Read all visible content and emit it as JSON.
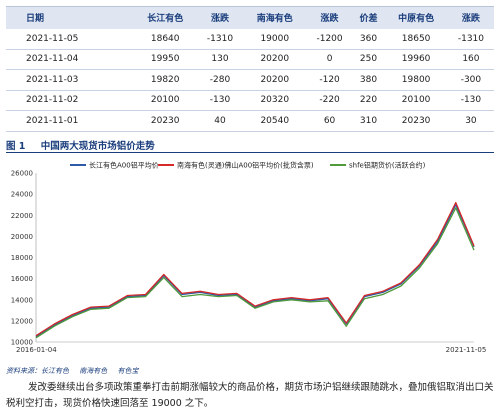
{
  "table": {
    "headers": [
      "日期",
      "长江有色",
      "涨跌",
      "南海有色",
      "涨跌",
      "价差",
      "中原有色",
      "涨跌"
    ],
    "rows": [
      [
        "2021-11-05",
        "18640",
        "-1310",
        "19000",
        "-1200",
        "360",
        "18650",
        "-1310"
      ],
      [
        "2021-11-04",
        "19950",
        "130",
        "20200",
        "0",
        "250",
        "19960",
        "160"
      ],
      [
        "2021-11-03",
        "19820",
        "-280",
        "20200",
        "-120",
        "380",
        "19800",
        "-300"
      ],
      [
        "2021-11-02",
        "20100",
        "-130",
        "20320",
        "-220",
        "220",
        "20100",
        "-130"
      ],
      [
        "2021-11-01",
        "20230",
        "40",
        "20540",
        "60",
        "310",
        "20230",
        "30"
      ]
    ]
  },
  "figure": {
    "number": "图 1",
    "title": "中国两大现货市场铝价走势"
  },
  "source": {
    "label": "资料来源：长江有色",
    "items": [
      "南海有色",
      "有色宝"
    ]
  },
  "body_text": "发改委继续出台多项政策重拳打击前期涨幅较大的商品价格，期货市场沪铝继续跟随跳水，叠加俄铝取消出口关税利空打击，现货价格快速回落至 19000 之下。",
  "chart_data": {
    "type": "line",
    "ylim": [
      10000,
      26000
    ],
    "yticks": [
      10000,
      12000,
      14000,
      16000,
      18000,
      20000,
      22000,
      24000,
      26000
    ],
    "x_start_label": "2016-01-04",
    "x_end_label": "2021-11-05",
    "legend_position": "top",
    "grid": false,
    "x": [
      "2016-01",
      "2016-04",
      "2016-07",
      "2016-10",
      "2017-01",
      "2017-04",
      "2017-07",
      "2017-10",
      "2018-01",
      "2018-04",
      "2018-07",
      "2018-10",
      "2019-01",
      "2019-04",
      "2019-07",
      "2019-10",
      "2020-01",
      "2020-04",
      "2020-07",
      "2020-10",
      "2021-01",
      "2021-04",
      "2021-07",
      "2021-10",
      "2021-11"
    ],
    "series": [
      {
        "name": "长江有色A00铝平均价",
        "color": "#2e5aa8",
        "values": [
          10500,
          11600,
          12500,
          13200,
          13300,
          14300,
          14400,
          16300,
          14500,
          14700,
          14400,
          14500,
          13300,
          13900,
          14100,
          13900,
          14100,
          11700,
          14300,
          14700,
          15500,
          17200,
          19500,
          23000,
          19000
        ]
      },
      {
        "name": "南海有色(灵通)佛山A00铝平均价(批货含票)",
        "color": "#d42a2a",
        "values": [
          10600,
          11700,
          12600,
          13300,
          13400,
          14400,
          14500,
          16400,
          14600,
          14800,
          14500,
          14600,
          13400,
          14000,
          14200,
          14000,
          14200,
          11800,
          14400,
          14800,
          15600,
          17300,
          19700,
          23200,
          19100
        ]
      },
      {
        "name": "shfe铝期货价(活跃合约)",
        "color": "#4f9a3a",
        "values": [
          10400,
          11500,
          12400,
          13100,
          13200,
          14200,
          14300,
          16100,
          14300,
          14500,
          14300,
          14400,
          13200,
          13800,
          14000,
          13800,
          13900,
          11500,
          14100,
          14500,
          15300,
          17000,
          19300,
          22700,
          18700
        ]
      }
    ]
  }
}
